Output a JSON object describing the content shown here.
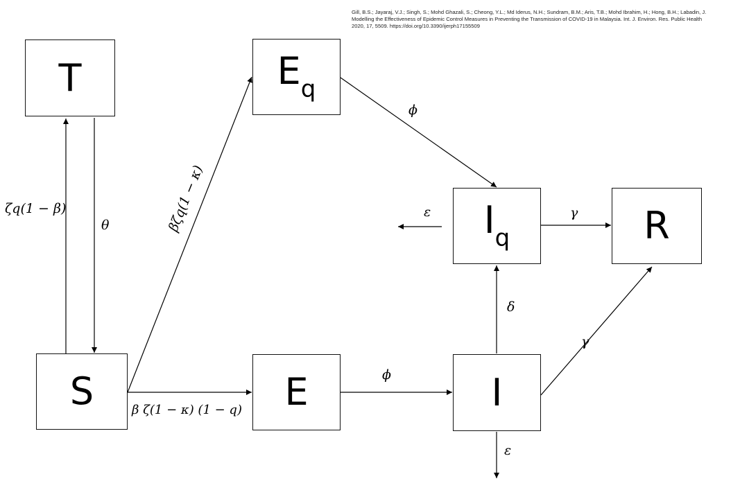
{
  "citation": {
    "line1": "Gill, B.S.; Jayaraj, V.J.; Singh, S.; Mohd Ghazali, S.; Cheong, Y.L.; Md Iderus, N.H.; Sundram, B.M.; Aris, T.B.; Mohd Ibrahim, H.; Hong, B.H.; Labadin, J.",
    "line2": "Modelling the Effectiveness of Epidemic Control Measures in Preventing the Transmission of COVID-19 in Malaysia. Int. J. Environ. Res. Public Health",
    "line3": "2020, 17, 5509. https://doi.org/10.3390/ijerph17155509"
  },
  "nodes": {
    "T": {
      "label": "T"
    },
    "S": {
      "label": "S"
    },
    "Eq": {
      "label": "E",
      "sub": "q"
    },
    "E": {
      "label": "E"
    },
    "Iq": {
      "label": "I",
      "sub": "q"
    },
    "I": {
      "label": "I"
    },
    "R": {
      "label": "R"
    }
  },
  "edges": {
    "s_to_t": "ζq(1 − β)",
    "t_to_s": "θ",
    "s_to_eq": "βζq(1 − κ)",
    "s_to_e": "β ζ(1 − κ) (1 − q)",
    "eq_to_iq": "ϕ",
    "e_to_i": "ϕ",
    "iq_out": "ε",
    "iq_to_r": "γ",
    "i_to_iq": "δ",
    "i_to_r": "γ",
    "i_out": "ε"
  }
}
